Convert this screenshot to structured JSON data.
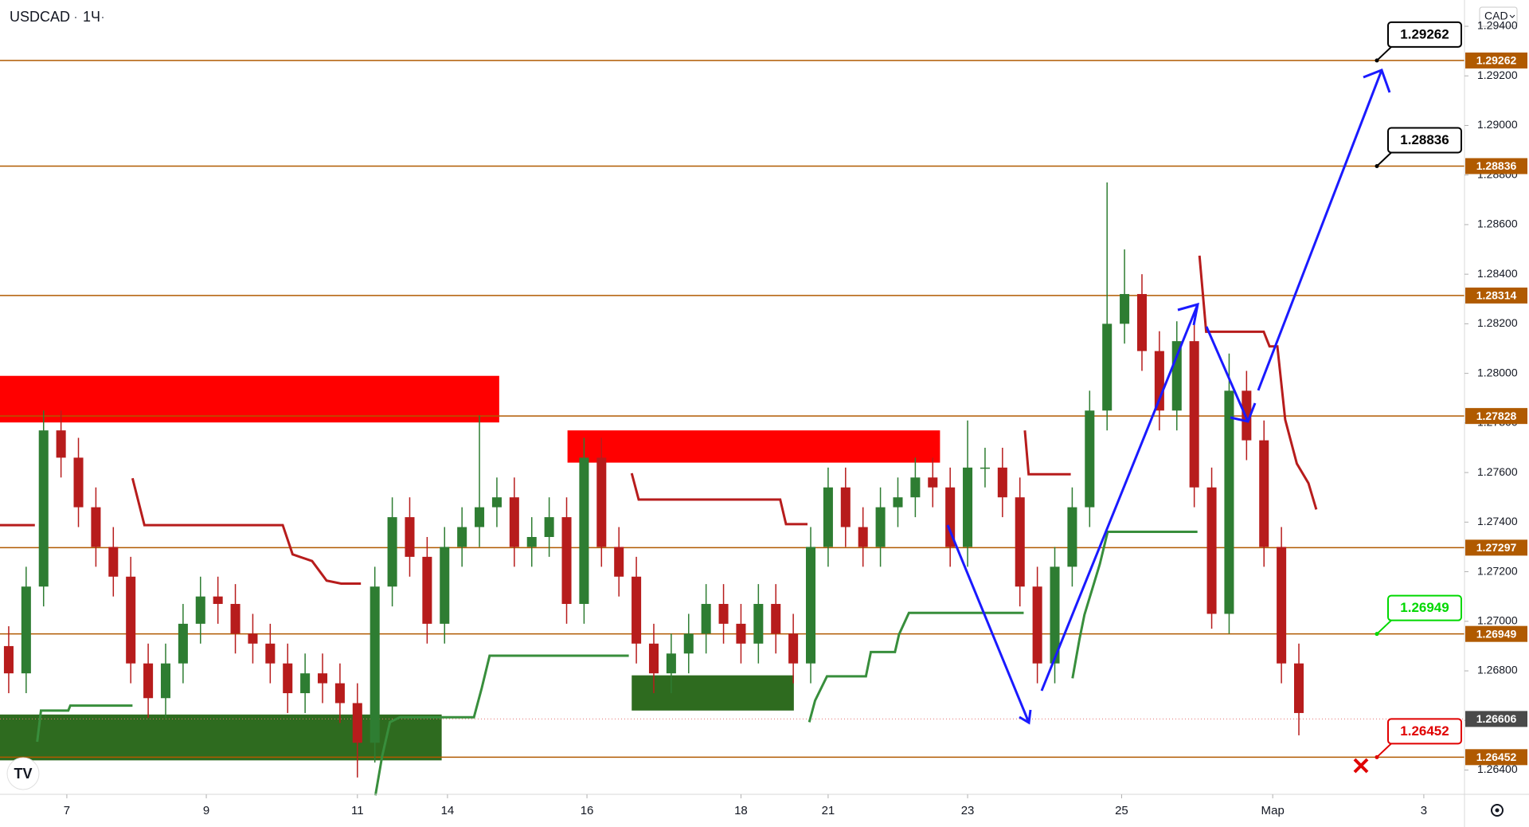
{
  "chart_data": {
    "type": "candlestick",
    "title": "USDCAD",
    "interval": "1Ч",
    "currency": "CAD",
    "up_color": "#2e7d32",
    "down_color": "#b71c1c",
    "grid": false,
    "x": [
      3,
      9,
      15,
      21,
      27,
      33,
      39,
      45,
      51,
      57,
      63,
      69,
      75,
      81,
      87,
      93,
      99,
      105,
      111,
      117,
      123,
      129,
      135,
      141,
      147,
      153,
      159,
      165,
      171,
      177,
      183,
      189,
      195,
      201,
      207,
      213,
      219,
      225,
      231,
      237,
      243,
      249,
      255,
      261,
      267,
      273,
      279,
      285,
      291,
      297,
      303,
      309,
      315,
      321,
      327,
      333,
      339,
      345,
      351,
      357,
      363,
      369,
      375,
      381,
      387,
      393,
      399,
      405,
      411,
      417,
      423,
      429,
      435,
      441,
      447
    ],
    "open": [
      1.269,
      1.2679,
      1.2714,
      1.2777,
      1.2766,
      1.2746,
      1.273,
      1.2718,
      1.2683,
      1.2669,
      1.2683,
      1.2699,
      1.271,
      1.2707,
      1.2695,
      1.2691,
      1.2683,
      1.2671,
      1.2679,
      1.2675,
      1.2667,
      1.2651,
      1.2714,
      1.2742,
      1.2726,
      1.2699,
      1.273,
      1.2738,
      1.2746,
      1.275,
      1.273,
      1.2734,
      1.2742,
      1.2707,
      1.2766,
      1.273,
      1.2718,
      1.2691,
      1.2679,
      1.2687,
      1.2695,
      1.2707,
      1.2699,
      1.2691,
      1.2707,
      1.2695,
      1.2683,
      1.273,
      1.2754,
      1.2738,
      1.273,
      1.2746,
      1.275,
      1.2758,
      1.2754,
      1.273,
      1.2762,
      1.2762,
      1.275,
      1.2714,
      1.2683,
      1.2722,
      1.2746,
      1.2785,
      1.282,
      1.2832,
      1.2809,
      1.2785,
      1.2813,
      1.2754,
      1.2703,
      1.2793,
      1.2773,
      1.273,
      1.2683
    ],
    "high": [
      1.2698,
      1.2722,
      1.2785,
      1.2785,
      1.2774,
      1.2754,
      1.2738,
      1.2726,
      1.2691,
      1.2691,
      1.2707,
      1.2718,
      1.2718,
      1.2715,
      1.2703,
      1.2699,
      1.2691,
      1.2687,
      1.2687,
      1.2683,
      1.2675,
      1.2722,
      1.275,
      1.275,
      1.2734,
      1.2738,
      1.2746,
      1.2783,
      1.2758,
      1.2758,
      1.2742,
      1.275,
      1.275,
      1.2774,
      1.2774,
      1.2738,
      1.2726,
      1.2699,
      1.2695,
      1.2703,
      1.2715,
      1.2715,
      1.2707,
      1.2715,
      1.2715,
      1.2703,
      1.2738,
      1.2762,
      1.2762,
      1.2746,
      1.2754,
      1.2758,
      1.2766,
      1.2766,
      1.2762,
      1.2781,
      1.277,
      1.277,
      1.2758,
      1.2722,
      1.273,
      1.2754,
      1.2793,
      1.2877,
      1.285,
      1.284,
      1.2817,
      1.2821,
      1.2821,
      1.2762,
      1.2808,
      1.2801,
      1.2781,
      1.2738,
      1.2691
    ],
    "low": [
      1.2671,
      1.2671,
      1.2706,
      1.2758,
      1.2738,
      1.2722,
      1.271,
      1.2675,
      1.2661,
      1.2661,
      1.2675,
      1.2691,
      1.2699,
      1.2687,
      1.2683,
      1.2675,
      1.2663,
      1.2663,
      1.2667,
      1.2659,
      1.2637,
      1.2643,
      1.2706,
      1.2718,
      1.2691,
      1.2691,
      1.2722,
      1.273,
      1.2738,
      1.2722,
      1.2722,
      1.2726,
      1.2699,
      1.2699,
      1.2722,
      1.271,
      1.2683,
      1.2671,
      1.2671,
      1.2679,
      1.2687,
      1.2691,
      1.2683,
      1.2683,
      1.2687,
      1.2675,
      1.2675,
      1.2722,
      1.273,
      1.2722,
      1.2722,
      1.2738,
      1.2742,
      1.2746,
      1.2722,
      1.2722,
      1.2754,
      1.2742,
      1.2706,
      1.2675,
      1.2675,
      1.2714,
      1.2738,
      1.2777,
      1.2812,
      1.2801,
      1.2777,
      1.2777,
      1.2746,
      1.2697,
      1.2695,
      1.2765,
      1.2722,
      1.2675,
      1.2654
    ],
    "close": [
      1.2679,
      1.2714,
      1.2777,
      1.2766,
      1.2746,
      1.273,
      1.2718,
      1.2683,
      1.2669,
      1.2683,
      1.2699,
      1.271,
      1.2707,
      1.2695,
      1.2691,
      1.2683,
      1.2671,
      1.2679,
      1.2675,
      1.2667,
      1.2651,
      1.2714,
      1.2742,
      1.2726,
      1.2699,
      1.273,
      1.2738,
      1.2746,
      1.275,
      1.273,
      1.2734,
      1.2742,
      1.2707,
      1.2766,
      1.273,
      1.2718,
      1.2691,
      1.2679,
      1.2687,
      1.2695,
      1.2707,
      1.2699,
      1.2691,
      1.2707,
      1.2695,
      1.2683,
      1.273,
      1.2754,
      1.2738,
      1.273,
      1.2746,
      1.275,
      1.2758,
      1.2754,
      1.273,
      1.2762,
      1.2762,
      1.275,
      1.2714,
      1.2683,
      1.2722,
      1.2746,
      1.2785,
      1.282,
      1.2832,
      1.2809,
      1.2785,
      1.2813,
      1.2754,
      1.2703,
      1.2793,
      1.2773,
      1.273,
      1.2683,
      1.2663
    ],
    "xlim": [
      0,
      504
    ],
    "xticks": [
      {
        "value": 23,
        "label": "7"
      },
      {
        "value": 71,
        "label": "9"
      },
      {
        "value": 123,
        "label": "11"
      },
      {
        "value": 154,
        "label": "14"
      },
      {
        "value": 202,
        "label": "16"
      },
      {
        "value": 255,
        "label": "18"
      },
      {
        "value": 285,
        "label": "21"
      },
      {
        "value": 333,
        "label": "23"
      },
      {
        "value": 386,
        "label": "25"
      },
      {
        "value": 438,
        "label": "Мар"
      },
      {
        "value": 490,
        "label": "3"
      }
    ],
    "ylim": [
      1.26302,
      1.29506
    ],
    "yticks": [
      {
        "value": 1.264,
        "label": "1.26400"
      },
      {
        "value": 1.266,
        "label": "1.26600"
      },
      {
        "value": 1.268,
        "label": "1.26800"
      },
      {
        "value": 1.27,
        "label": "1.27000"
      },
      {
        "value": 1.272,
        "label": "1.27200"
      },
      {
        "value": 1.274,
        "label": "1.27400"
      },
      {
        "value": 1.276,
        "label": "1.27600"
      },
      {
        "value": 1.278,
        "label": "1.27800"
      },
      {
        "value": 1.28,
        "label": "1.28000"
      },
      {
        "value": 1.282,
        "label": "1.28200"
      },
      {
        "value": 1.284,
        "label": "1.28400"
      },
      {
        "value": 1.286,
        "label": "1.28600"
      },
      {
        "value": 1.288,
        "label": "1.28800"
      },
      {
        "value": 1.29,
        "label": "1.29000"
      },
      {
        "value": 1.292,
        "label": "1.29200"
      },
      {
        "value": 1.294,
        "label": "1.29400"
      }
    ],
    "levels": {
      "color": "#b05a00",
      "values": [
        1.29262,
        1.28836,
        1.28314,
        1.27828,
        1.27297,
        1.26949,
        1.26452
      ]
    },
    "last_price": 1.26606,
    "zones": [
      {
        "color": "#ff0000",
        "x": [
          0,
          171.8
        ],
        "y": [
          1.27802,
          1.2799
        ]
      },
      {
        "color": "#ff0000",
        "x": [
          195.3,
          323.5
        ],
        "y": [
          1.2764,
          1.2777
        ]
      },
      {
        "color": "#2e6b1f",
        "x": [
          217.4,
          273.2
        ],
        "y": [
          1.2664,
          1.26782
        ]
      },
      {
        "color": "#2e6b1f",
        "x": [
          0,
          152
        ],
        "y": [
          1.26439,
          1.26624
        ]
      }
    ],
    "trend_lines": [
      {
        "color": "#b71c1c",
        "x": [
          0,
          12
        ],
        "y": [
          1.27388,
          1.27388
        ]
      },
      {
        "color": "#b71c1c",
        "x": [
          45.6,
          49.7,
          97.3,
          100.7,
          107.4,
          112.4,
          117.4,
          124.2
        ],
        "y": [
          1.27577,
          1.27388,
          1.27388,
          1.2727,
          1.27243,
          1.27164,
          1.27152,
          1.27152
        ]
      },
      {
        "color": "#b71c1c",
        "x": [
          217.4,
          219.8,
          268.5,
          270.5,
          277.9
        ],
        "y": [
          1.27597,
          1.27491,
          1.27491,
          1.27392,
          1.27392
        ]
      },
      {
        "color": "#b71c1c",
        "x": [
          352.7,
          354,
          368.5
        ],
        "y": [
          1.2777,
          1.27593,
          1.27593
        ]
      },
      {
        "color": "#b71c1c",
        "x": [
          412.8,
          415.1,
          434.9,
          436.9,
          439.6,
          442.3,
          446.3,
          450.3,
          453
        ],
        "y": [
          1.28475,
          1.28168,
          1.28168,
          1.28109,
          1.28109,
          1.27813,
          1.27636,
          1.27557,
          1.27451
        ]
      },
      {
        "color": "#388e3c",
        "x": [
          12.8,
          14.1,
          23.5,
          24.2,
          45.6
        ],
        "y": [
          1.26514,
          1.2664,
          1.2664,
          1.2666,
          1.2666
        ]
      },
      {
        "color": "#388e3c",
        "x": [
          129.2,
          131.5,
          134.2,
          137.6,
          163.1,
          165.8,
          168.5,
          216.4
        ],
        "y": [
          1.26298,
          1.26455,
          1.26593,
          1.26613,
          1.26613,
          1.26731,
          1.26861,
          1.26861
        ]
      },
      {
        "color": "#388e3c",
        "x": [
          278.5,
          280.5,
          284.6,
          298,
          299.7,
          308,
          309.4,
          312.8,
          352.3
        ],
        "y": [
          1.26593,
          1.2668,
          1.26778,
          1.26778,
          1.26876,
          1.26876,
          1.26947,
          1.27034,
          1.27034
        ]
      },
      {
        "color": "#388e3c",
        "x": [
          369.1,
          371.5,
          373.2,
          378.5,
          381.2,
          412.1
        ],
        "y": [
          1.2677,
          1.26928,
          1.27026,
          1.27231,
          1.27361,
          1.27361
        ]
      }
    ],
    "callouts": [
      {
        "value": 1.29262,
        "color": "#000000"
      },
      {
        "value": 1.28836,
        "color": "#000000"
      },
      {
        "value": 1.26949,
        "color": "#00d800"
      },
      {
        "value": 1.26452,
        "color": "#e00000"
      }
    ]
  }
}
